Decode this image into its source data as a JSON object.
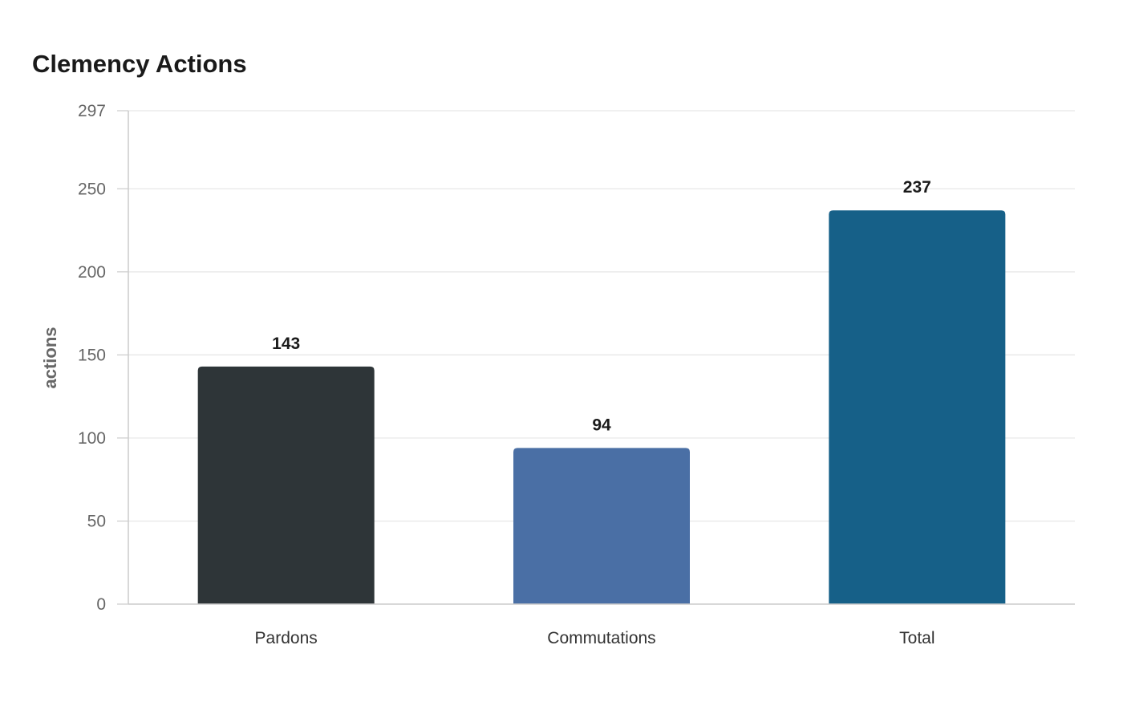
{
  "chart_data": {
    "type": "bar",
    "title": "Clemency Actions",
    "xlabel": "",
    "ylabel": "actions",
    "categories": [
      "Pardons",
      "Commutations",
      "Total"
    ],
    "values": [
      143,
      94,
      237
    ],
    "colors": [
      "#2e3538",
      "#4a6fa5",
      "#166088"
    ],
    "ylim": [
      0,
      297
    ],
    "yticks": [
      0,
      50,
      100,
      150,
      200,
      250,
      297
    ],
    "grid": true,
    "legend": "none"
  }
}
